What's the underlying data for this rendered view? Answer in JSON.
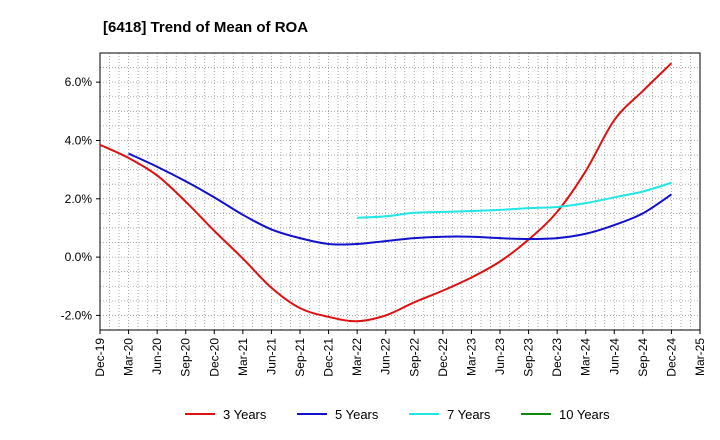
{
  "chart_data": {
    "type": "line",
    "title": "[6418]  Trend of Mean of ROA",
    "xlabel": "",
    "ylabel": "",
    "ylim": [
      -2.5,
      7.0
    ],
    "y_ticks": [
      -2.0,
      0.0,
      2.0,
      4.0,
      6.0
    ],
    "y_tick_labels": [
      "-2.0%",
      "0.0%",
      "2.0%",
      "4.0%",
      "6.0%"
    ],
    "x_tick_labels": [
      "Dec-19",
      "Mar-20",
      "Jun-20",
      "Sep-20",
      "Dec-20",
      "Mar-21",
      "Jun-21",
      "Sep-21",
      "Dec-21",
      "Mar-22",
      "Jun-22",
      "Sep-22",
      "Dec-22",
      "Mar-23",
      "Jun-23",
      "Sep-23",
      "Dec-23",
      "Mar-24",
      "Jun-24",
      "Sep-24",
      "Dec-24",
      "Mar-25"
    ],
    "grid": true,
    "legend_position": "bottom",
    "series": [
      {
        "name": "3 Years",
        "color": "#dd1111",
        "values": [
          3.85,
          3.4,
          2.8,
          1.9,
          0.9,
          -0.05,
          -1.05,
          -1.75,
          -2.05,
          -2.2,
          -2.0,
          -1.55,
          -1.15,
          -0.7,
          -0.15,
          0.6,
          1.55,
          2.95,
          4.7,
          5.7,
          6.65,
          null
        ]
      },
      {
        "name": "5 Years",
        "color": "#1111cc",
        "values": [
          null,
          3.55,
          3.1,
          2.6,
          2.05,
          1.45,
          0.95,
          0.65,
          0.45,
          0.45,
          0.55,
          0.65,
          0.7,
          0.7,
          0.65,
          0.62,
          0.65,
          0.8,
          1.1,
          1.5,
          2.15,
          null
        ]
      },
      {
        "name": "7 Years",
        "color": "#22e5e5",
        "values": [
          null,
          null,
          null,
          null,
          null,
          null,
          null,
          null,
          null,
          1.35,
          1.4,
          1.52,
          1.55,
          1.58,
          1.62,
          1.68,
          1.72,
          1.85,
          2.05,
          2.25,
          2.55,
          null
        ]
      },
      {
        "name": "10 Years",
        "color": "#118811",
        "values": [
          null,
          null,
          null,
          null,
          null,
          null,
          null,
          null,
          null,
          null,
          null,
          null,
          null,
          null,
          null,
          null,
          null,
          null,
          null,
          null,
          null,
          null
        ]
      }
    ]
  }
}
